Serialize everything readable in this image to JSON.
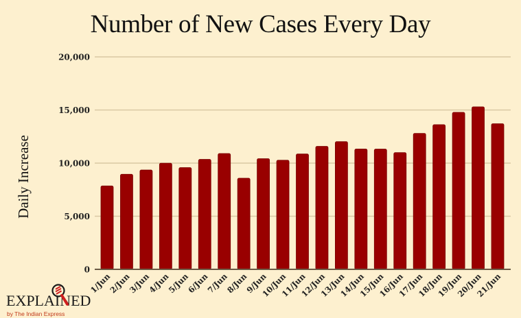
{
  "title": "Number of New Cases Every Day",
  "brand": {
    "logo_text": "EXPLAINED",
    "logo_subtext": "by The Indian Express",
    "accent_color": "#d01f1f"
  },
  "chart_data": {
    "type": "bar",
    "title": "Number of New Cases Every Day",
    "xlabel": "",
    "ylabel": "Daily Increase",
    "ylim": [
      0,
      20000
    ],
    "yticks": [
      0,
      5000,
      10000,
      15000,
      20000
    ],
    "ytick_labels": [
      "0",
      "5,000",
      "10,000",
      "15,000",
      "20,000"
    ],
    "grid": true,
    "bar_color": "#990000",
    "categories": [
      "1/Jun",
      "2/Jun",
      "3/Jun",
      "4/Jun",
      "5/Jun",
      "6/Jun",
      "7/Jun",
      "8/Jun",
      "9/Jun",
      "10/Jun",
      "11/Jun",
      "12/Jun",
      "13/Jun",
      "14/Jun",
      "15/Jun",
      "16/Jun",
      "17/Jun",
      "18/Jun",
      "19/Jun",
      "20/Jun",
      "21/Jun"
    ],
    "values": [
      7850,
      8950,
      9350,
      9990,
      9580,
      10350,
      10900,
      8580,
      10420,
      10270,
      10860,
      11580,
      12020,
      11330,
      11320,
      10990,
      12800,
      13620,
      14780,
      15300,
      13710
    ]
  }
}
